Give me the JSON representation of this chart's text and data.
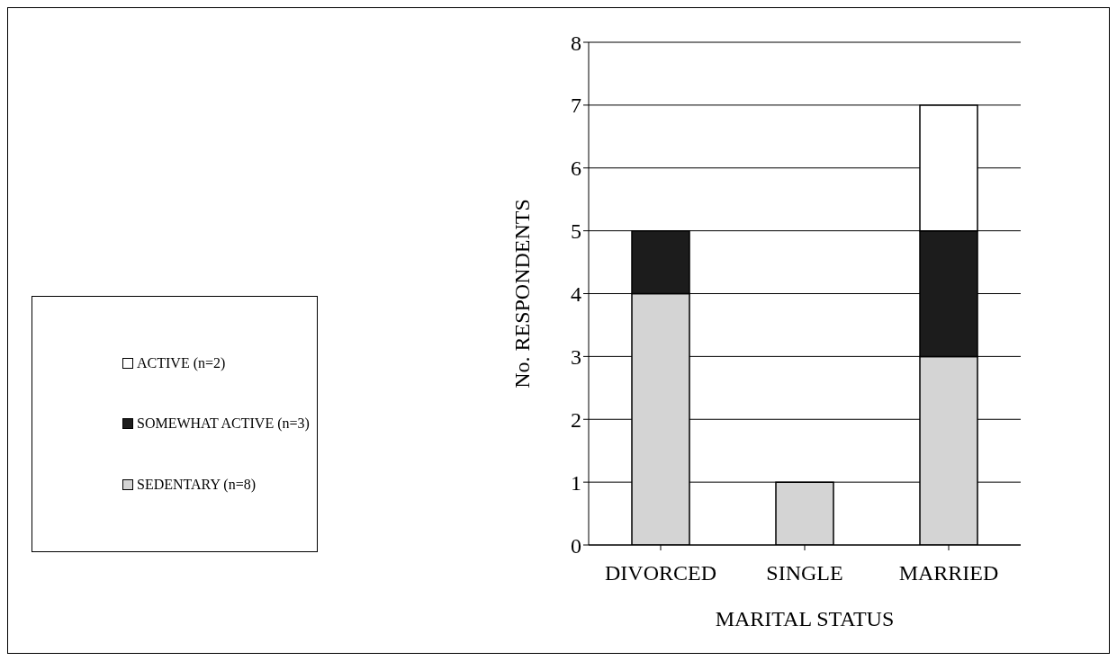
{
  "chart_data": {
    "type": "bar",
    "stacked": true,
    "xlabel": "MARITAL STATUS",
    "ylabel": "No. RESPONDENTS",
    "categories": [
      "DIVORCED",
      "SINGLE",
      "MARRIED"
    ],
    "series": [
      {
        "name": "SEDENTARY (n=8)",
        "color": "#d4d4d4",
        "values": [
          4,
          1,
          3
        ]
      },
      {
        "name": "SOMEWHAT ACTIVE (n=3)",
        "color": "#1c1c1c",
        "values": [
          1,
          0,
          2
        ]
      },
      {
        "name": "ACTIVE (n=2)",
        "color": "#ffffff",
        "values": [
          0,
          0,
          2
        ]
      }
    ],
    "ylim": [
      0,
      8
    ],
    "yticks": [
      0,
      1,
      2,
      3,
      4,
      5,
      6,
      7,
      8
    ],
    "grid": "y",
    "legend": "left"
  }
}
